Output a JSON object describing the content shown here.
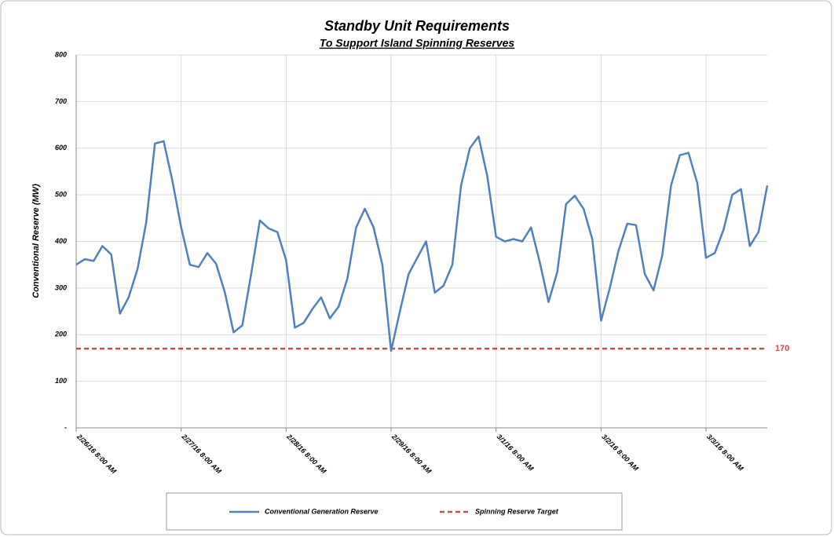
{
  "chart_data": {
    "type": "line",
    "title": "Standby Unit Requirements",
    "subtitle": "To Support Island Spinning Reserves",
    "y_label": "Conventional Reserve (MW)",
    "categories": [
      "2/26/16 8:00 AM",
      null,
      null,
      null,
      null,
      null,
      null,
      null,
      null,
      null,
      null,
      null,
      "2/27/16 8:00 AM",
      null,
      null,
      null,
      null,
      null,
      null,
      null,
      null,
      null,
      null,
      null,
      "2/28/16 8:00 AM",
      null,
      null,
      null,
      null,
      null,
      null,
      null,
      null,
      null,
      null,
      null,
      "2/29/16 8:00 AM",
      null,
      null,
      null,
      null,
      null,
      null,
      null,
      null,
      null,
      null,
      null,
      "3/1/16 8:00 AM",
      null,
      null,
      null,
      null,
      null,
      null,
      null,
      null,
      null,
      null,
      null,
      "3/2/16 8:00 AM",
      null,
      null,
      null,
      null,
      null,
      null,
      null,
      null,
      null,
      null,
      null,
      "3/3/16 8:00 AM",
      null,
      null,
      null,
      null,
      null,
      null,
      null
    ],
    "series": [
      {
        "name": "Conventional Generation Reserve",
        "color": "#4f81bd",
        "values": [
          350,
          362,
          358,
          390,
          372,
          245,
          280,
          340,
          440,
          610,
          615,
          530,
          430,
          350,
          345,
          375,
          352,
          290,
          205,
          220,
          330,
          445,
          428,
          420,
          360,
          215,
          225,
          255,
          280,
          235,
          260,
          320,
          430,
          470,
          430,
          350,
          165,
          250,
          330,
          365,
          400,
          290,
          305,
          350,
          520,
          600,
          625,
          540,
          410,
          400,
          405,
          400,
          430,
          355,
          270,
          335,
          480,
          498,
          470,
          405,
          230,
          300,
          380,
          438,
          435,
          330,
          295,
          370,
          520,
          585,
          590,
          525,
          365,
          375,
          425,
          500,
          512,
          390,
          420,
          520
        ]
      }
    ],
    "reference_line": {
      "name": "Spinning Reserve Target",
      "value": 170,
      "color": "#c0504d",
      "dashed": true
    },
    "ylim": [
      0,
      800
    ],
    "yticks": [
      {
        "value": 0,
        "label": "-"
      },
      100,
      200,
      300,
      400,
      500,
      600,
      700,
      800
    ],
    "grid": true
  }
}
